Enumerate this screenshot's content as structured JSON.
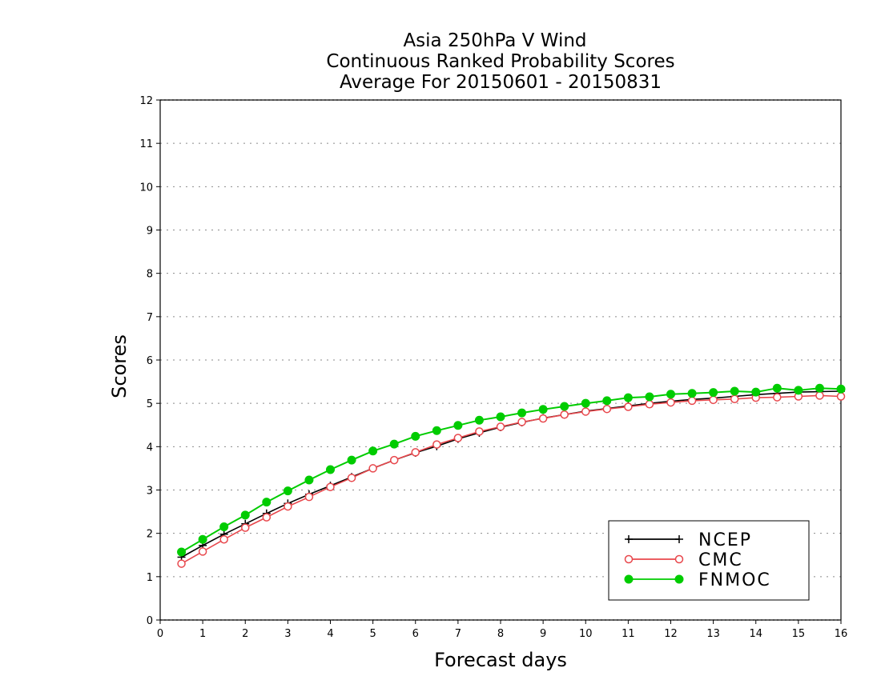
{
  "chart_data": {
    "type": "line",
    "title": [
      "Asia 250hPa V Wind",
      "Continuous Ranked Probability Scores",
      "Average For 20150601 - 20150831"
    ],
    "xlabel": "Forecast days",
    "ylabel": "Scores",
    "xlim": [
      0,
      16
    ],
    "ylim": [
      0,
      12
    ],
    "xticks": [
      "0",
      "1",
      "2",
      "3",
      "4",
      "5",
      "6",
      "7",
      "8",
      "9",
      "10",
      "11",
      "12",
      "13",
      "14",
      "15",
      "16"
    ],
    "yticks": [
      "0",
      "1",
      "2",
      "3",
      "4",
      "5",
      "6",
      "7",
      "8",
      "9",
      "10",
      "11",
      "12"
    ],
    "grid": "horizontal dotted",
    "legend_position": "bottom-right",
    "x": [
      0.5,
      1,
      1.5,
      2,
      2.5,
      3,
      3.5,
      4,
      4.5,
      5,
      5.5,
      6,
      6.5,
      7,
      7.5,
      8,
      8.5,
      9,
      9.5,
      10,
      10.5,
      11,
      11.5,
      12,
      12.5,
      13,
      13.5,
      14,
      14.5,
      15,
      15.5,
      16
    ],
    "series": [
      {
        "name": "NCEP",
        "color": "#000000",
        "marker": "plus",
        "values": [
          1.45,
          1.72,
          1.98,
          2.22,
          2.46,
          2.69,
          2.9,
          3.1,
          3.3,
          3.5,
          3.69,
          3.86,
          4.01,
          4.18,
          4.32,
          4.45,
          4.56,
          4.66,
          4.74,
          4.82,
          4.88,
          4.94,
          5.0,
          5.05,
          5.09,
          5.12,
          5.16,
          5.2,
          5.23,
          5.26,
          5.27,
          5.28
        ]
      },
      {
        "name": "CMC",
        "color": "#e8474c",
        "marker": "open-circle",
        "values": [
          1.3,
          1.58,
          1.86,
          2.13,
          2.37,
          2.62,
          2.84,
          3.07,
          3.28,
          3.5,
          3.69,
          3.87,
          4.05,
          4.2,
          4.35,
          4.46,
          4.57,
          4.65,
          4.74,
          4.81,
          4.87,
          4.92,
          4.98,
          5.02,
          5.06,
          5.08,
          5.1,
          5.13,
          5.14,
          5.16,
          5.18,
          5.16
        ]
      },
      {
        "name": "FNMOC",
        "color": "#00cc00",
        "marker": "filled-circle",
        "values": [
          1.57,
          1.86,
          2.15,
          2.42,
          2.72,
          2.98,
          3.23,
          3.47,
          3.69,
          3.9,
          4.06,
          4.24,
          4.37,
          4.49,
          4.61,
          4.69,
          4.78,
          4.86,
          4.93,
          5.0,
          5.06,
          5.13,
          5.15,
          5.21,
          5.23,
          5.25,
          5.28,
          5.26,
          5.35,
          5.3,
          5.35,
          5.33
        ]
      }
    ]
  }
}
